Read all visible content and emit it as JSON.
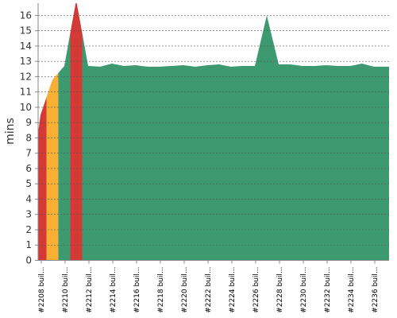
{
  "chart_data": {
    "type": "area",
    "y_label": "mins",
    "categories": [
      "#2208 buil...",
      null,
      "#2210 buil...",
      null,
      "#2212 buil...",
      null,
      "#2214 buil...",
      null,
      "#2216 buil...",
      null,
      "#2218 buil...",
      null,
      "#2220 buil...",
      null,
      "#2222 buil...",
      null,
      "#2224 buil...",
      null,
      "#2226 buil...",
      null,
      "#2228 buil...",
      null,
      "#2230 buil...",
      null,
      "#2232 buil...",
      null,
      "#2234 buil...",
      null,
      "#2236 buil...",
      null
    ],
    "values": [
      9.5,
      11.8,
      12.7,
      17,
      12.7,
      12.65,
      12.85,
      12.7,
      12.75,
      12.65,
      12.65,
      12.7,
      12.75,
      12.65,
      12.75,
      12.8,
      12.65,
      12.7,
      12.7,
      16.0,
      12.8,
      12.8,
      12.7,
      12.7,
      12.75,
      12.7,
      12.7,
      12.85,
      12.65,
      12.65
    ],
    "colors": [
      "#d33a35",
      "#f7b035",
      "#3d9970",
      "#d33a35",
      "#3d9970",
      "#3d9970",
      "#3d9970",
      "#3d9970",
      "#3d9970",
      "#3d9970",
      "#3d9970",
      "#3d9970",
      "#3d9970",
      "#3d9970",
      "#3d9970",
      "#3d9970",
      "#3d9970",
      "#3d9970",
      "#3d9970",
      "#3d9970",
      "#3d9970",
      "#3d9970",
      "#3d9970",
      "#3d9970",
      "#3d9970",
      "#3d9970",
      "#3d9970",
      "#3d9970",
      "#3d9970",
      "#3d9970"
    ],
    "ylim": [
      0,
      16.8
    ],
    "yticks": [
      0,
      1,
      2,
      3,
      4,
      5,
      6,
      7,
      8,
      9,
      10,
      11,
      12,
      13,
      14,
      15,
      16
    ],
    "grid": true
  }
}
